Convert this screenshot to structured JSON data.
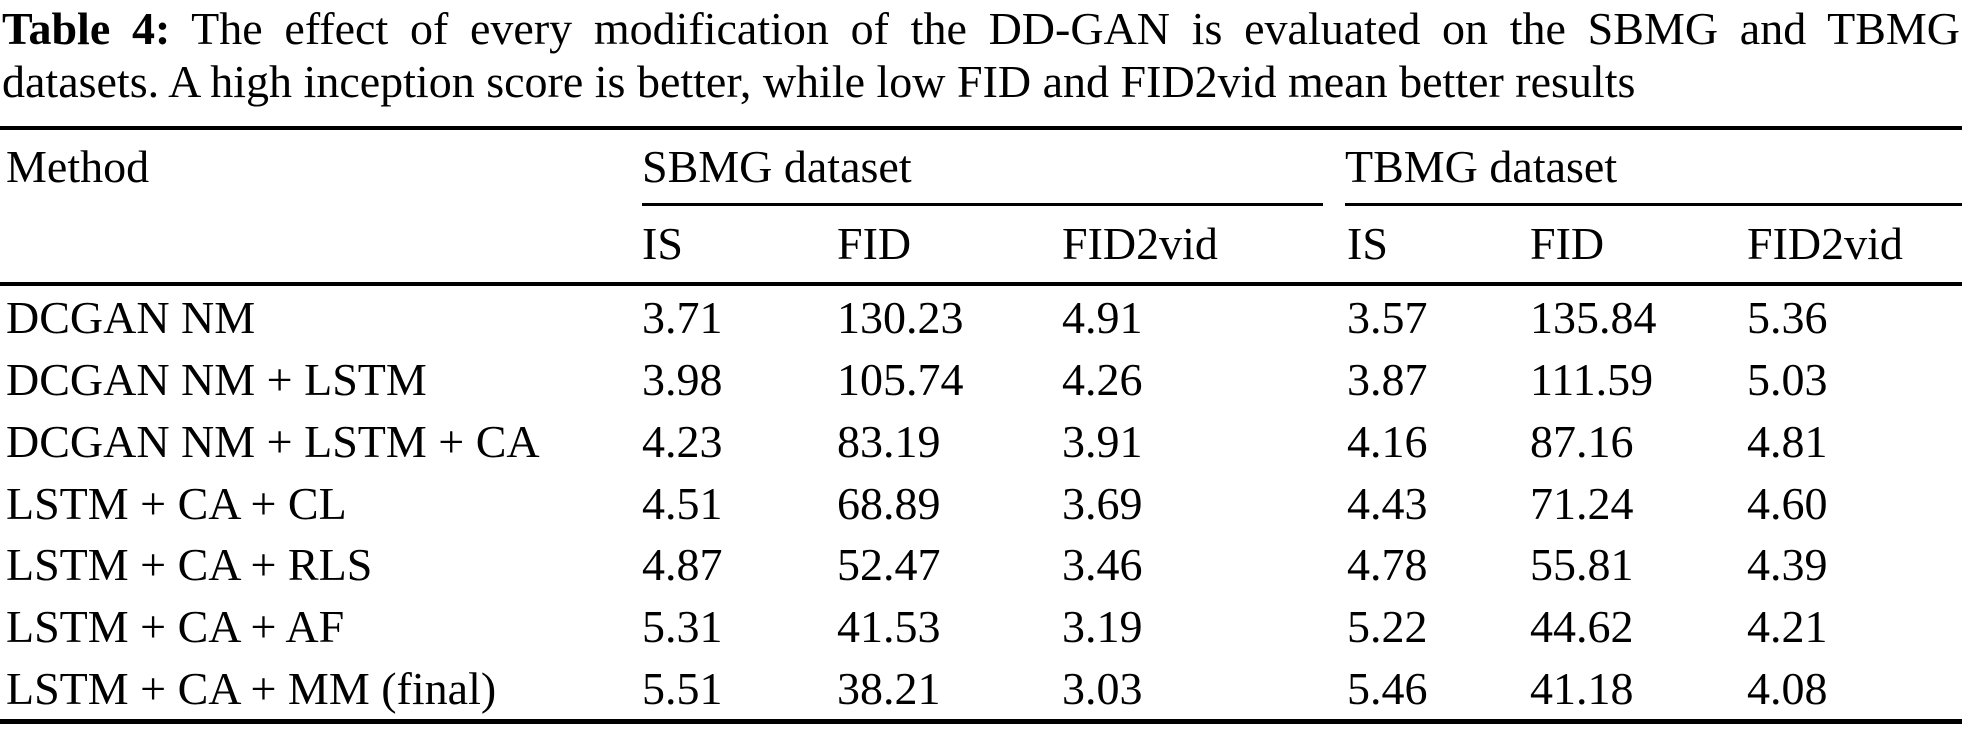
{
  "caption": {
    "label": "Table 4:",
    "line1_rest": " The effect of every modification of the DD-GAN is evaluated on the SBMG and TBMG",
    "line2": "datasets. A high inception score is better, while low FID and FID2vid mean better results"
  },
  "table": {
    "method_header": "Method",
    "groups": [
      {
        "label": "SBMG dataset"
      },
      {
        "label": "TBMG dataset"
      }
    ],
    "subheaders": [
      "IS",
      "FID",
      "FID2vid",
      "IS",
      "FID",
      "FID2vid"
    ],
    "rows": [
      {
        "method": "DCGAN NM",
        "values": [
          "3.71",
          "130.23",
          "4.91",
          "3.57",
          "135.84",
          "5.36"
        ]
      },
      {
        "method": "DCGAN NM + LSTM",
        "values": [
          "3.98",
          "105.74",
          "4.26",
          "3.87",
          "111.59",
          "5.03"
        ]
      },
      {
        "method": "DCGAN NM + LSTM + CA",
        "values": [
          "4.23",
          "83.19",
          "3.91",
          "4.16",
          "87.16",
          "4.81"
        ]
      },
      {
        "method": "LSTM + CA + CL",
        "values": [
          "4.51",
          "68.89",
          "3.69",
          "4.43",
          "71.24",
          "4.60"
        ]
      },
      {
        "method": "LSTM + CA + RLS",
        "values": [
          "4.87",
          "52.47",
          "3.46",
          "4.78",
          "55.81",
          "4.39"
        ]
      },
      {
        "method": "LSTM + CA + AF",
        "values": [
          "5.31",
          "41.53",
          "3.19",
          "5.22",
          "44.62",
          "4.21"
        ]
      },
      {
        "method": "LSTM + CA + MM (final)",
        "values": [
          "5.51",
          "38.21",
          "3.03",
          "5.46",
          "41.18",
          "4.08"
        ]
      }
    ]
  },
  "colors": {
    "text": "#000000",
    "background": "#ffffff",
    "rule": "#000000"
  }
}
